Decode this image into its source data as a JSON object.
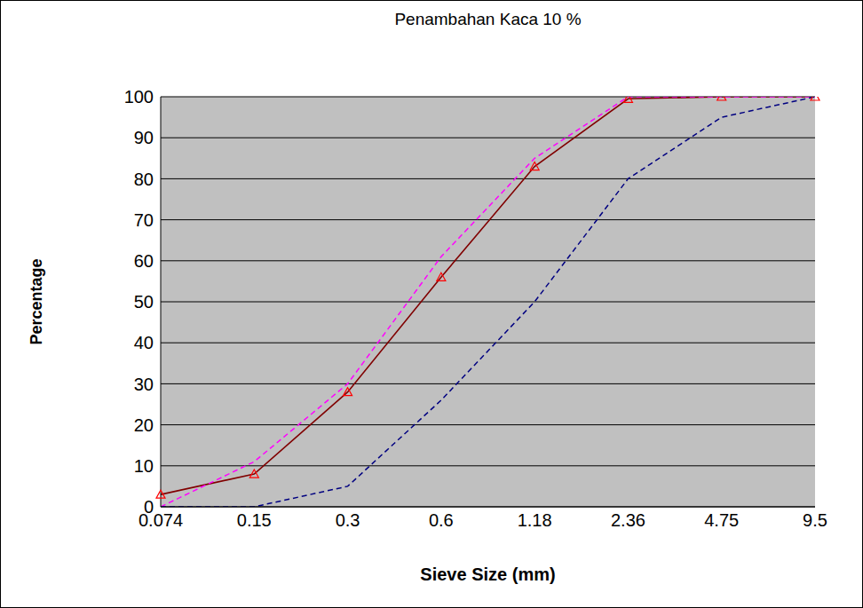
{
  "chart_data": {
    "type": "line",
    "title": "Penambahan Kaca 10 %",
    "x_label": "Sieve Size (mm)",
    "y_label": "Percentage",
    "categories": [
      "0.074",
      "0.15",
      "0.3",
      "0.6",
      "1.18",
      "2.36",
      "4.75",
      "9.5"
    ],
    "series": [
      {
        "color": "#800000",
        "line_style": "solid",
        "marker": "triangle",
        "values": [
          3,
          8,
          28,
          56,
          83,
          99.5,
          100,
          100
        ]
      },
      {
        "color": "#ff00ff",
        "line_style": "dashed",
        "values": [
          0,
          11,
          30,
          61,
          85,
          100,
          100,
          100
        ]
      },
      {
        "color": "#000080",
        "line_style": "dashed",
        "values": [
          0,
          0,
          5,
          26,
          50,
          80,
          95,
          100
        ]
      }
    ],
    "ylim": [
      0,
      100
    ],
    "yticks": [
      0,
      10,
      20,
      30,
      40,
      50,
      60,
      70,
      80,
      90,
      100
    ],
    "grid": true
  }
}
